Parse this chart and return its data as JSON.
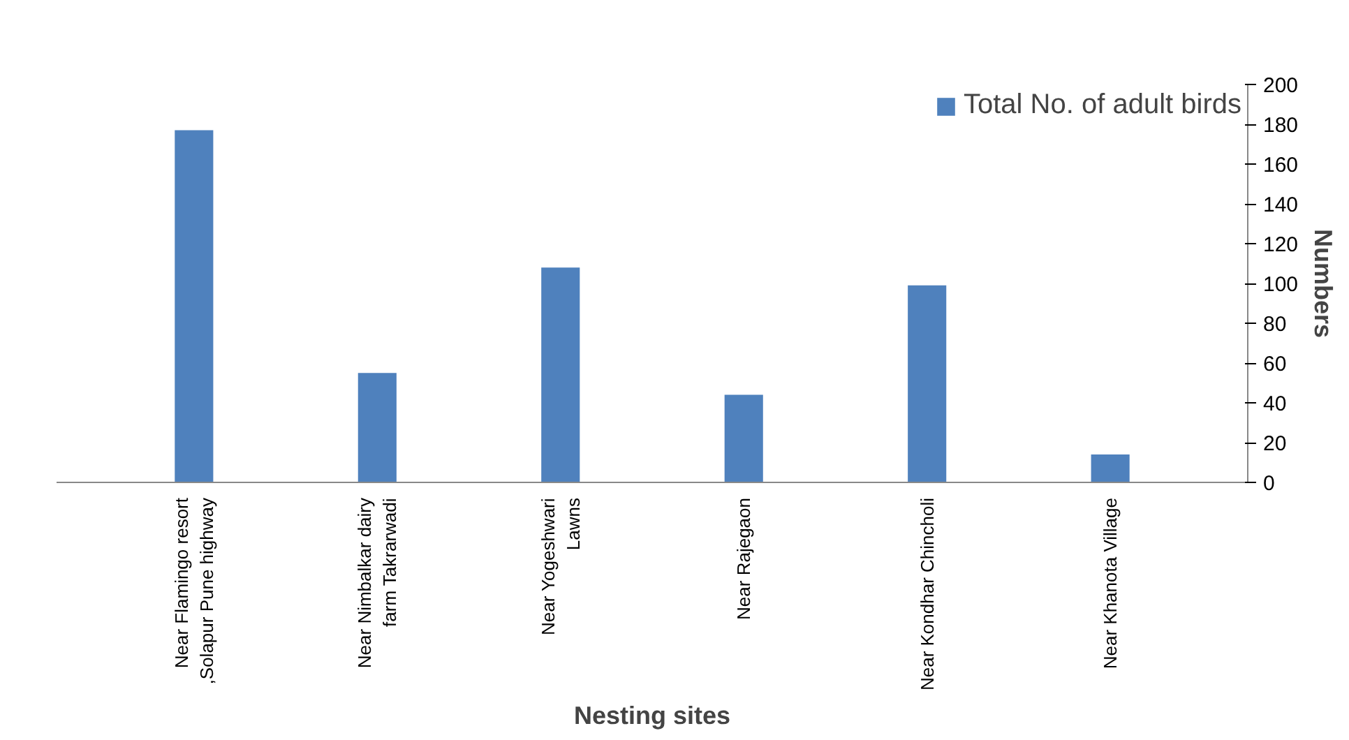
{
  "chart_data": {
    "type": "bar",
    "xlabel": "Nesting sites",
    "ylabel": "Numbers",
    "categories": [
      "Near Flamingo resort\n,Solapur Pune highway",
      "Near Nimbalkar dairy\nfarm Takrarwadi",
      "Near Yogeshwari\nLawns",
      "Near Rajegaon",
      "Near Kondhar Chincholi",
      "Near Khanota Village"
    ],
    "series": [
      {
        "name": "Total No. of adult birds",
        "color": "#4f81bd",
        "values": [
          177,
          55,
          108,
          44,
          99,
          14
        ]
      }
    ],
    "ylim": [
      0,
      200
    ],
    "yticks": [
      0,
      20,
      40,
      60,
      80,
      100,
      120,
      140,
      160,
      180,
      200
    ],
    "grid": false,
    "legend": "top right"
  }
}
